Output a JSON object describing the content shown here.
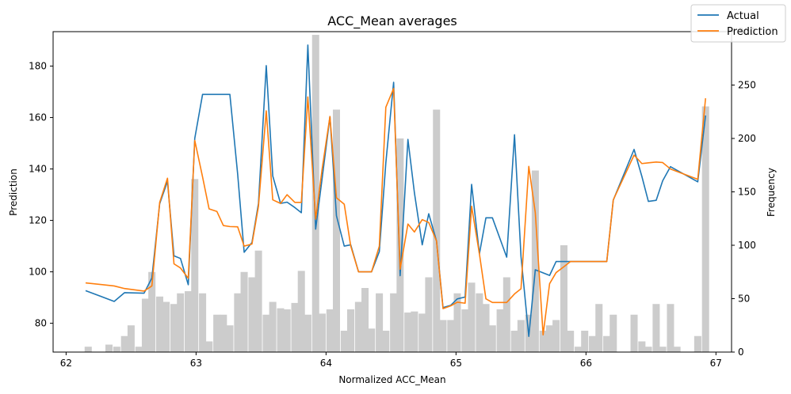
{
  "chart_data": {
    "type": "line",
    "title": "ACC_Mean averages",
    "xlabel": "Normalized ACC_Mean",
    "ylabel_left": "Prediction",
    "ylabel_right": "Frequency",
    "xlim": [
      61.9,
      67.12
    ],
    "ylim_left": [
      68.8,
      193.4
    ],
    "ylim_right": [
      0,
      300
    ],
    "x_ticks": [
      62,
      63,
      64,
      65,
      66,
      67
    ],
    "y_left_ticks": [
      80,
      100,
      120,
      140,
      160,
      180
    ],
    "y_right_ticks": [
      0,
      50,
      100,
      150,
      200,
      250,
      300
    ],
    "grid": false,
    "legend_position": "top-right",
    "histogram": {
      "bar_width": 0.055,
      "centers": [
        62.17,
        62.33,
        62.39,
        62.45,
        62.5,
        62.56,
        62.61,
        62.66,
        62.72,
        62.77,
        62.83,
        62.88,
        62.94,
        62.99,
        63.05,
        63.1,
        63.16,
        63.21,
        63.26,
        63.32,
        63.37,
        63.43,
        63.48,
        63.54,
        63.59,
        63.65,
        63.7,
        63.76,
        63.81,
        63.86,
        63.92,
        63.97,
        64.03,
        64.08,
        64.14,
        64.19,
        64.25,
        64.3,
        64.35,
        64.41,
        64.46,
        64.52,
        64.57,
        64.63,
        64.68,
        64.74,
        64.79,
        64.85,
        64.9,
        64.96,
        65.01,
        65.07,
        65.12,
        65.18,
        65.23,
        65.28,
        65.34,
        65.39,
        65.45,
        65.5,
        65.56,
        65.61,
        65.67,
        65.72,
        65.77,
        65.83,
        65.88,
        65.94,
        65.99,
        66.05,
        66.1,
        66.16,
        66.21,
        66.37,
        66.43,
        66.48,
        66.54,
        66.59,
        66.65,
        66.7,
        66.86,
        66.92
      ],
      "counts": [
        5,
        7,
        5,
        15,
        25,
        5,
        50,
        75,
        52,
        47,
        45,
        55,
        57,
        162,
        55,
        10,
        35,
        35,
        25,
        55,
        75,
        70,
        95,
        35,
        47,
        41,
        40,
        46,
        76,
        35,
        297,
        36,
        40,
        227,
        20,
        40,
        47,
        60,
        22,
        55,
        20,
        55,
        200,
        37,
        38,
        36,
        70,
        227,
        30,
        30,
        55,
        40,
        65,
        55,
        45,
        25,
        40,
        70,
        20,
        30,
        35,
        170,
        20,
        25,
        30,
        100,
        20,
        5,
        20,
        15,
        45,
        15,
        35,
        35,
        10,
        5,
        45,
        5,
        45,
        5,
        15,
        230
      ]
    },
    "series": [
      {
        "name": "Actual",
        "color": "#1f77b4",
        "x": [
          62.15,
          62.37,
          62.45,
          62.6,
          62.66,
          62.72,
          62.78,
          62.83,
          62.88,
          62.94,
          62.99,
          63.05,
          63.26,
          63.32,
          63.37,
          63.43,
          63.48,
          63.54,
          63.59,
          63.65,
          63.7,
          63.76,
          63.81,
          63.86,
          63.92,
          63.97,
          64.03,
          64.08,
          64.14,
          64.19,
          64.25,
          64.3,
          64.35,
          64.41,
          64.46,
          64.52,
          64.57,
          64.63,
          64.68,
          64.74,
          64.79,
          64.85,
          64.9,
          64.96,
          65.01,
          65.07,
          65.12,
          65.18,
          65.23,
          65.28,
          65.39,
          65.45,
          65.5,
          65.56,
          65.61,
          65.67,
          65.72,
          65.77,
          65.83,
          65.88,
          65.94,
          66.0,
          66.16,
          66.21,
          66.37,
          66.43,
          66.48,
          66.54,
          66.59,
          66.65,
          66.86,
          66.92
        ],
        "y": [
          92.7,
          88.5,
          91.9,
          91.7,
          97.6,
          126.5,
          135.2,
          106.2,
          105.2,
          95.0,
          151.9,
          169.0,
          169.0,
          138.0,
          107.6,
          111.4,
          126.6,
          180.2,
          137.3,
          126.6,
          127.1,
          125.0,
          123.0,
          188.2,
          116.6,
          136.4,
          160.4,
          121.8,
          110.0,
          110.5,
          100.0,
          100.0,
          100.0,
          107.9,
          142.4,
          173.7,
          98.5,
          151.5,
          130.7,
          110.5,
          122.6,
          112.0,
          86.1,
          87.0,
          89.5,
          90.2,
          134.0,
          107.0,
          121.0,
          121.0,
          105.7,
          153.3,
          106.0,
          74.9,
          100.8,
          99.6,
          98.6,
          104.0,
          104.0,
          104.0,
          104.0,
          104.0,
          104.0,
          127.9,
          147.6,
          137.1,
          127.4,
          127.8,
          135.4,
          140.9,
          135.0,
          160.8
        ]
      },
      {
        "name": "Prediction",
        "color": "#ff7f0e",
        "x": [
          62.15,
          62.37,
          62.45,
          62.6,
          62.66,
          62.72,
          62.78,
          62.83,
          62.88,
          62.94,
          62.99,
          63.05,
          63.1,
          63.16,
          63.21,
          63.26,
          63.32,
          63.37,
          63.43,
          63.48,
          63.54,
          63.59,
          63.65,
          63.7,
          63.76,
          63.81,
          63.86,
          63.92,
          63.97,
          64.03,
          64.08,
          64.14,
          64.19,
          64.25,
          64.3,
          64.35,
          64.41,
          64.46,
          64.52,
          64.57,
          64.63,
          64.68,
          64.74,
          64.79,
          64.85,
          64.9,
          64.96,
          65.01,
          65.07,
          65.12,
          65.18,
          65.23,
          65.28,
          65.34,
          65.39,
          65.45,
          65.5,
          65.56,
          65.61,
          65.67,
          65.72,
          65.77,
          65.83,
          65.88,
          65.94,
          66.0,
          66.16,
          66.21,
          66.37,
          66.43,
          66.48,
          66.54,
          66.59,
          66.65,
          66.86,
          66.92
        ],
        "y": [
          95.7,
          94.5,
          93.5,
          92.5,
          94.5,
          127.0,
          136.4,
          103.1,
          101.5,
          97.5,
          151.1,
          136.9,
          124.5,
          123.5,
          118.0,
          117.6,
          117.5,
          110.0,
          110.8,
          125.5,
          162.6,
          128.0,
          126.6,
          130.0,
          127.0,
          127.0,
          168.0,
          120.5,
          140.0,
          160.4,
          128.8,
          126.3,
          110.0,
          100.0,
          100.0,
          100.0,
          110.0,
          164.0,
          171.3,
          101.0,
          118.6,
          115.5,
          120.3,
          119.2,
          112.0,
          85.7,
          86.8,
          88.2,
          87.8,
          125.5,
          107.0,
          89.5,
          88.1,
          88.1,
          88.1,
          91.4,
          93.4,
          141.0,
          123.0,
          75.5,
          95.4,
          99.7,
          102.0,
          104.0,
          104.0,
          104.0,
          104.0,
          128.0,
          145.4,
          142.1,
          142.4,
          142.7,
          142.5,
          140.0,
          136.0,
          167.5
        ]
      }
    ]
  }
}
